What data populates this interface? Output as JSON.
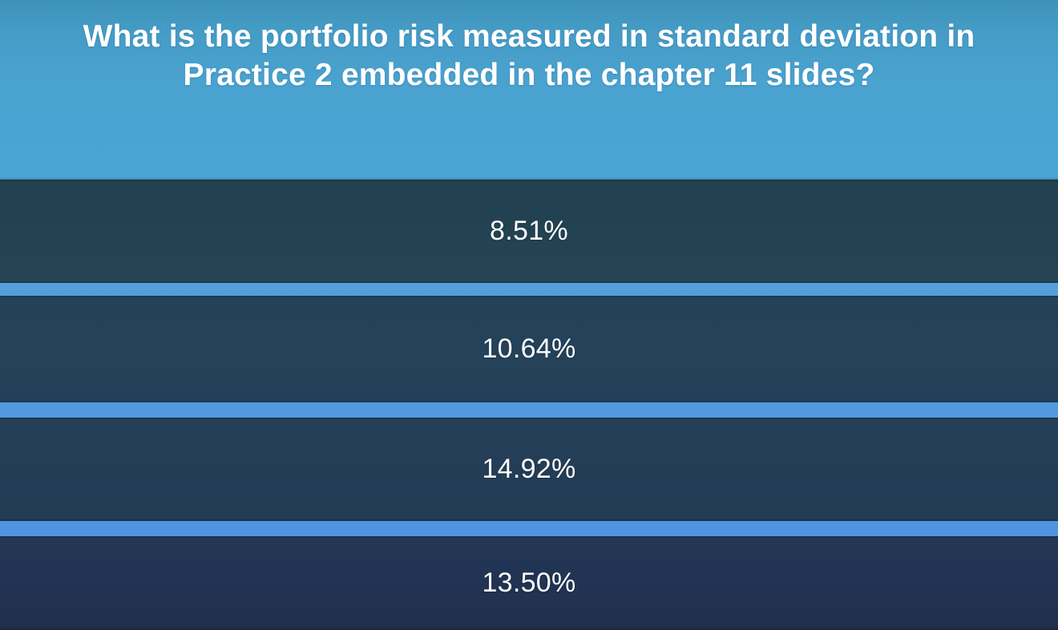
{
  "question": {
    "text": "What is the portfolio risk measured in standard deviation in Practice 2 embedded in the chapter 11 slides?"
  },
  "answers": [
    {
      "label": "8.51%"
    },
    {
      "label": "10.64%"
    },
    {
      "label": "14.92%"
    },
    {
      "label": "13.50%"
    }
  ],
  "theme": {
    "header_gradient_top": "#3c92b9",
    "header_gradient_bottom": "#4ba4d5",
    "gap_stripe_top": "#57a6db",
    "gap_stripe_bottom": "#4e90e3",
    "answer_bar_first": "#224150",
    "answer_bar_last": "#212f4c",
    "text_color": "#ffffff"
  }
}
